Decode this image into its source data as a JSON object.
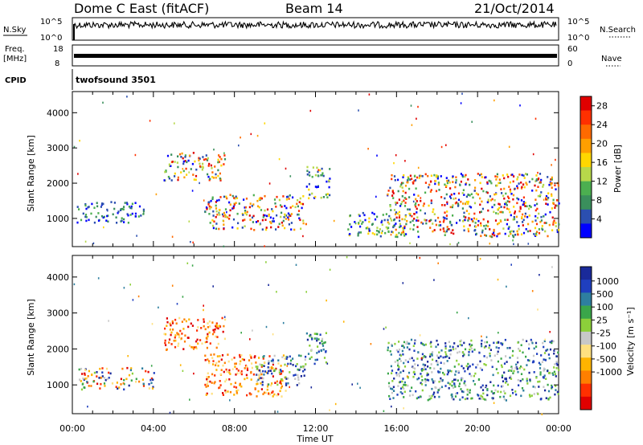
{
  "header": {
    "title": "Dome C East (fitACF)",
    "beam": "Beam 14",
    "date": "21/Oct/2014"
  },
  "aux": {
    "nsky_label": "N.Sky",
    "nsky_top": "10^5",
    "nsky_bottom": "10^0",
    "nsearch_label": "N.Search",
    "nsearch_top": "10^5",
    "nsearch_bottom": "10^0",
    "freq_label_1": "Freq.",
    "freq_label_2": "[MHz]",
    "freq_top": "18",
    "freq_bottom": "8",
    "nave_label": "Nave",
    "nave_top": "60",
    "nave_bottom": "0",
    "cpid_label": "CPID",
    "cpid_value": "twofsound 3501"
  },
  "colors": {
    "power": [
      "#0000ff",
      "#2b4fb0",
      "#3a8f5c",
      "#4caf50",
      "#b7d84a",
      "#ffd700",
      "#ff9f00",
      "#ff6a00",
      "#ff3000",
      "#e00000"
    ],
    "velocity": [
      "#e00000",
      "#ff3000",
      "#ff7f00",
      "#ffb400",
      "#ffe080",
      "#c8c8c8",
      "#8ccf3a",
      "#3aa64a",
      "#2e7fa0",
      "#1f3fbf",
      "#1a2a9a"
    ]
  },
  "chart_data": [
    {
      "type": "heatmap",
      "panel": "power",
      "ylabel": "Slant Range [km]",
      "yticks": [
        "1000",
        "2000",
        "3000",
        "4000"
      ],
      "ylim": [
        200,
        4600
      ],
      "xlim_hours": [
        0,
        24
      ],
      "colorbar_label": "Power [dB]",
      "colorbar_ticks": [
        "4",
        "8",
        "12",
        "16",
        "20",
        "24",
        "28"
      ],
      "colorbar_range": [
        0,
        30
      ],
      "regions": [
        {
          "t0": 4.5,
          "t1": 7.5,
          "r0": 2100,
          "r1": 2900,
          "level": "high"
        },
        {
          "t0": 6.5,
          "t1": 11.5,
          "r0": 700,
          "r1": 1700,
          "level": "high"
        },
        {
          "t0": 0.2,
          "t1": 3.5,
          "r0": 900,
          "r1": 1500,
          "level": "low"
        },
        {
          "t0": 11.5,
          "t1": 12.7,
          "r0": 1600,
          "r1": 2500,
          "level": "mid"
        },
        {
          "t0": 15.5,
          "t1": 24,
          "r0": 500,
          "r1": 2300,
          "level": "high"
        },
        {
          "t0": 13.5,
          "t1": 16.5,
          "r0": 500,
          "r1": 1200,
          "level": "mid"
        }
      ]
    },
    {
      "type": "heatmap",
      "panel": "velocity",
      "ylabel": "Slant Range [km]",
      "yticks": [
        "1000",
        "2000",
        "3000",
        "4000"
      ],
      "ylim": [
        200,
        4600
      ],
      "xlim_hours": [
        0,
        24
      ],
      "xticks": [
        "00:00",
        "04:00",
        "08:00",
        "12:00",
        "16:00",
        "20:00",
        "00:00"
      ],
      "xlabel": "Time UT",
      "colorbar_label": "Velocity [m s⁻¹]",
      "colorbar_ticks": [
        "1000",
        "500",
        "100",
        "25",
        "-25",
        "-100",
        "-500",
        "-1000"
      ],
      "regions": [
        {
          "t0": 4.5,
          "t1": 7.5,
          "r0": 2000,
          "r1": 2900,
          "level": "neg"
        },
        {
          "t0": 6.5,
          "t1": 10.5,
          "r0": 700,
          "r1": 1900,
          "level": "neg"
        },
        {
          "t0": 9,
          "t1": 11.5,
          "r0": 1000,
          "r1": 1900,
          "level": "pos"
        },
        {
          "t0": 0.3,
          "t1": 4,
          "r0": 900,
          "r1": 1500,
          "level": "mixed"
        },
        {
          "t0": 15.5,
          "t1": 24,
          "r0": 600,
          "r1": 2300,
          "level": "pos"
        },
        {
          "t0": 11.5,
          "t1": 12.7,
          "r0": 1600,
          "r1": 2500,
          "level": "pos"
        }
      ]
    }
  ]
}
